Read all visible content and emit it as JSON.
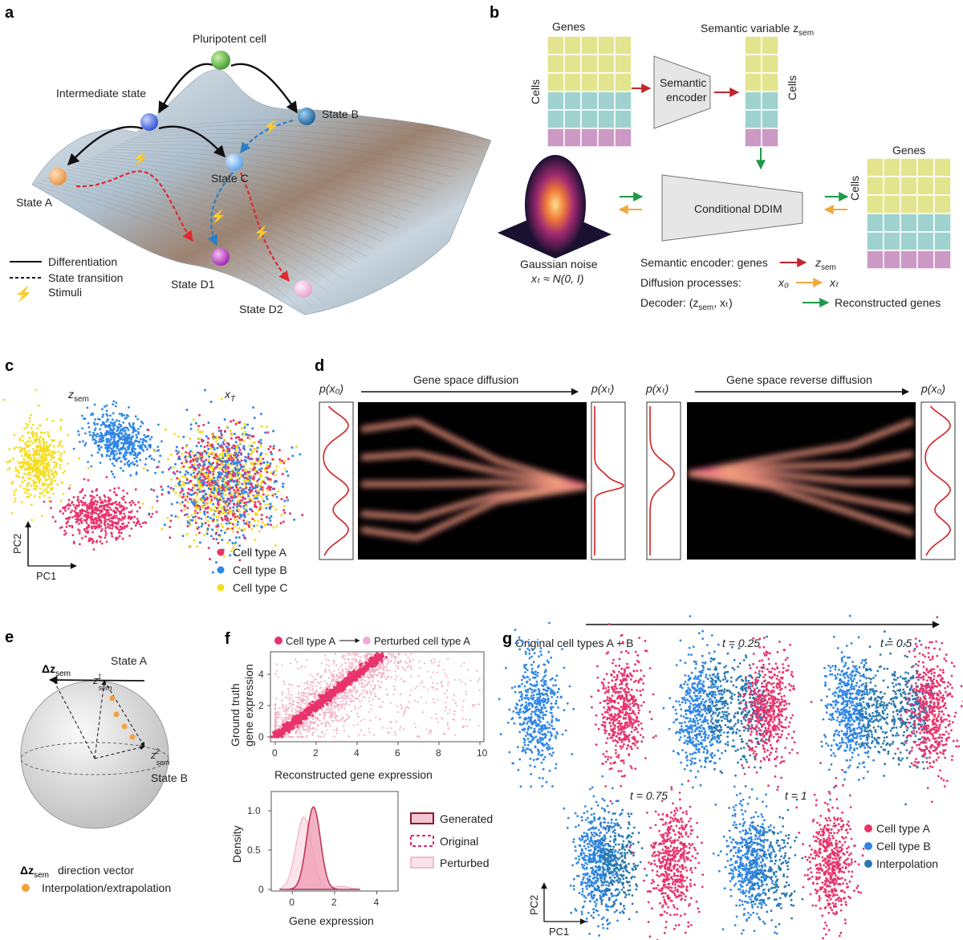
{
  "panels": {
    "a": "a",
    "b": "b",
    "c": "c",
    "d": "d",
    "e": "e",
    "f": "f",
    "g": "g"
  },
  "a": {
    "pluripotent": "Pluripotent cell",
    "intermediate": "Intermediate state",
    "state_a": "State A",
    "state_b": "State B",
    "state_c": "State C",
    "state_d1": "State D1",
    "state_d2": "State D2",
    "legend": {
      "differentiation": "Differentiation",
      "transition": "State transition",
      "stimuli": "Stimuli"
    }
  },
  "b": {
    "genes": "Genes",
    "cells": "Cells",
    "semantic_variable": "Semantic variable z",
    "sem_sub": "sem",
    "semantic_encoder_1": "Semantic",
    "semantic_encoder_2": "encoder",
    "ddim": "Conditional DDIM",
    "gaussian_noise": "Gaussian noise",
    "noise_formula": "xₜ ≈ N(0, I)",
    "legend": {
      "encoder": "Semantic encoder: genes",
      "encoder_target": "z",
      "diffusion": "Diffusion processes:",
      "x0": "x₀",
      "xT": "xₜ",
      "decoder": "Decoder: (z",
      "decoder_tail": ", xₜ)",
      "reconstructed": "Reconstructed genes"
    },
    "colors": {
      "yellow": "#e3e48e",
      "teal": "#9fd2cf",
      "pink": "#cc99c4",
      "red_arrow": "#c0282d",
      "orange_arrow": "#f0a93a",
      "green_arrow": "#1e9a4a"
    }
  },
  "c": {
    "zsem": "z",
    "zsem_sub": "sem",
    "xT": "x",
    "xT_sub": "T",
    "pc1": "PC1",
    "pc2": "PC2",
    "legend": [
      "Cell type A",
      "Cell type B",
      "Cell type C"
    ],
    "colors": {
      "A": "#e8336b",
      "B": "#2f86e6",
      "C": "#f5dd1e"
    }
  },
  "d": {
    "forward_title": "Gene space diffusion",
    "reverse_title": "Gene space reverse diffusion",
    "p_x0": "p(x₀)",
    "p_xT": "p(xₜ)"
  },
  "e": {
    "state_a": "State A",
    "state_b": "State B",
    "dz": "Δz",
    "dz_sub": "sem",
    "z1": "z",
    "z1_sup": "1",
    "z2": "z",
    "z2_sup": "2",
    "z_sub": "sem",
    "legend_dir_sym": "Δz",
    "legend_dir": "direction vector",
    "legend_interp": "Interpolation/extrapolation",
    "colors": {
      "state_a": "#e2487b",
      "state_b": "#3a86d6",
      "interp": "#f2a23c"
    }
  },
  "f": {
    "legend_a": "Cell type A",
    "legend_perturbed": "Perturbed cell type A",
    "scatter": {
      "type": "scatter",
      "xlabel": "Reconstructed gene expression",
      "ylabel_1": "Ground truth",
      "ylabel_2": "gene expression",
      "xlim": [
        0,
        10
      ],
      "ylim": [
        0,
        5.5
      ],
      "xticks": [
        "0",
        "2",
        "4",
        "6",
        "8",
        "10"
      ],
      "yticks": [
        "0",
        "2",
        "4"
      ]
    },
    "density": {
      "type": "area",
      "xlabel": "Gene expression",
      "ylabel": "Density",
      "xlim": [
        -1,
        5
      ],
      "ylim": [
        0,
        1.1
      ],
      "xticks": [
        "0",
        "2",
        "4"
      ],
      "yticks": [
        "0",
        "0.5",
        "1.0"
      ],
      "series": [
        {
          "name": "Generated",
          "peak_x": 1.0,
          "peak": 1.05
        },
        {
          "name": "Original",
          "peak_x": 1.0,
          "peak": 1.05
        },
        {
          "name": "Perturbed",
          "peak_x": 0.55,
          "peak": 0.92
        }
      ]
    },
    "colors": {
      "A": "#e8336b",
      "perturbed": "#f2b1c4",
      "generated": "#8b1a2e"
    }
  },
  "g": {
    "original": "Original cell types A + B",
    "t_labels": [
      "t = 0.25",
      "t = 0.5",
      "t = 0.75",
      "t = 1"
    ],
    "legend": [
      "Cell type A",
      "Cell type B",
      "Interpolation"
    ],
    "pc1": "PC1",
    "pc2": "PC2",
    "colors": {
      "A": "#e8336b",
      "B": "#2f86e6",
      "interp": "#2b78ad"
    }
  }
}
